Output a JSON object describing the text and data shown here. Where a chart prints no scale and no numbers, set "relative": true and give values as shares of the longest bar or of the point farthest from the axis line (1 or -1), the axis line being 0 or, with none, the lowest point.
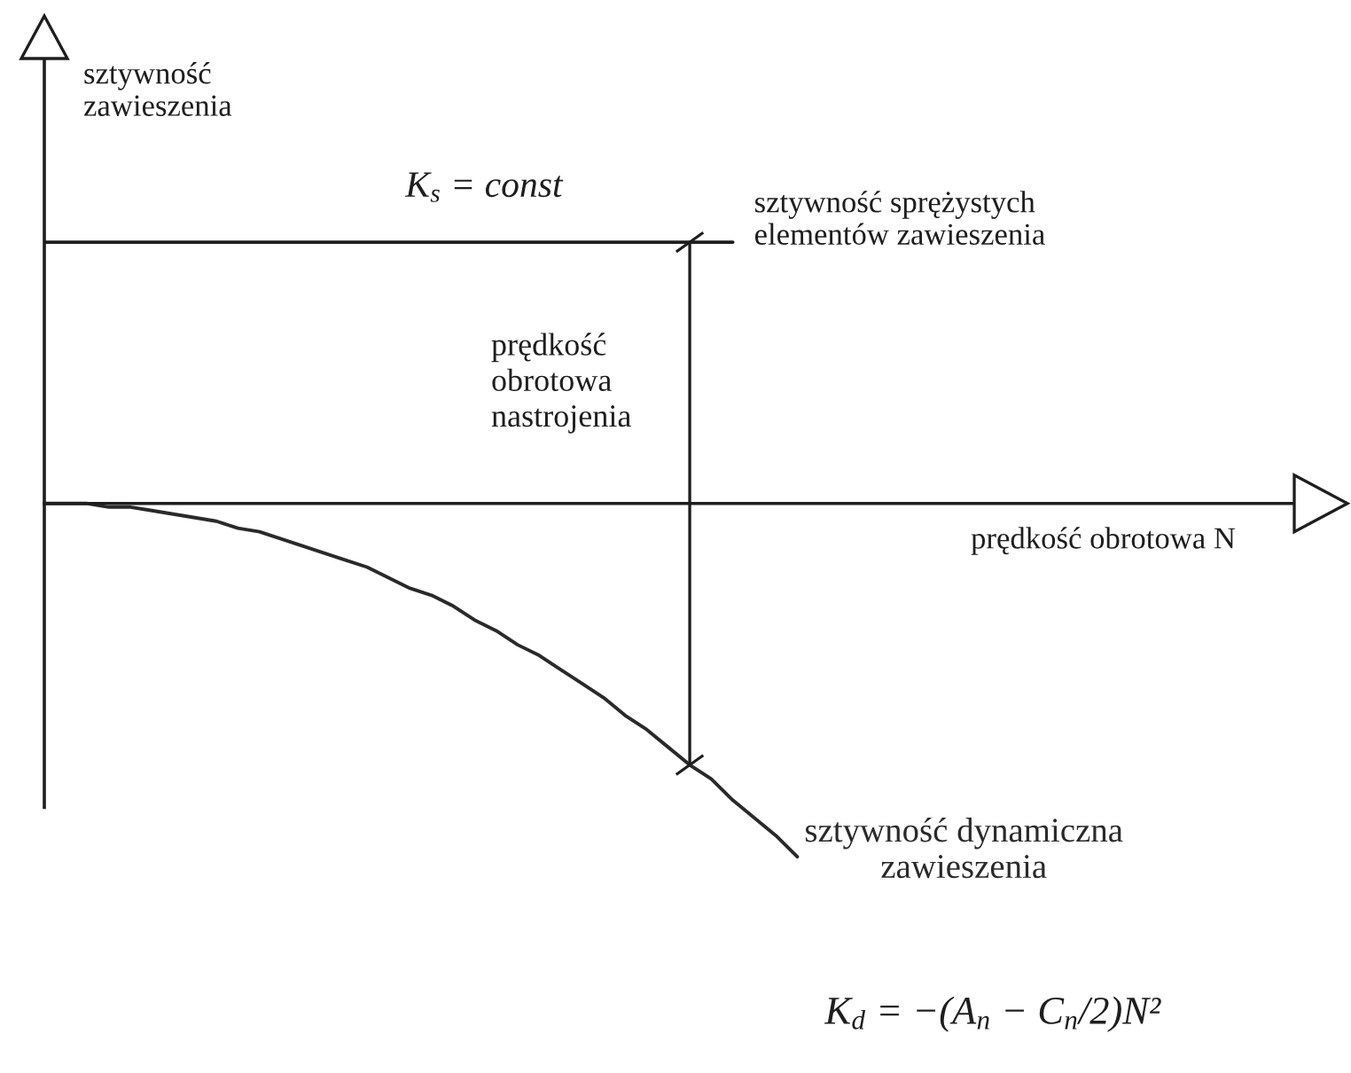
{
  "chart_data": {
    "type": "line",
    "relative": true,
    "tick_labels": false,
    "line_style": "solid",
    "ylabel": "sztywność\nzawieszenia",
    "categories": [
      null,
      null,
      null,
      null,
      null,
      null,
      null,
      null,
      null,
      null,
      null,
      null,
      null,
      null,
      null,
      null,
      null,
      null,
      null,
      null,
      null,
      null,
      null,
      null,
      null,
      null,
      null,
      null,
      null,
      null,
      null,
      null,
      null,
      null,
      null,
      null
    ],
    "series": [
      {
        "name": "sztywność sprężystych\nelementów zawieszenia",
        "color": "#1e1e1e",
        "values": [
          0.74,
          0.74,
          0.74,
          0.74,
          0.74,
          0.74,
          0.74,
          0.74,
          0.74,
          0.74,
          0.74,
          0.74,
          0.74,
          0.74,
          0.74,
          0.74,
          0.74,
          0.74,
          0.74,
          0.74,
          0.74,
          0.74,
          0.74,
          0.74,
          0.74,
          0.74,
          0.74,
          0.74,
          0.74,
          0.74,
          0.74,
          0.74,
          0.74,
          null,
          null,
          null
        ]
      },
      {
        "name": "sztywność dynamiczna\nzawieszenia",
        "color": "#2a2a2a",
        "values": [
          0,
          0,
          0,
          -0.01,
          -0.01,
          -0.02,
          -0.03,
          -0.04,
          -0.05,
          -0.07,
          -0.08,
          -0.1,
          -0.12,
          -0.14,
          -0.16,
          -0.18,
          -0.21,
          -0.24,
          -0.26,
          -0.29,
          -0.33,
          -0.36,
          -0.4,
          -0.43,
          -0.47,
          -0.51,
          -0.55,
          -0.6,
          -0.64,
          -0.69,
          -0.74,
          -0.78,
          -0.84,
          -0.89,
          -0.94,
          -1
        ]
      }
    ],
    "annotations": [
      "K$_{s}$ = const",
      "prędkość\nobrotowa\nnastrojenia",
      "prędkość obrotowa N",
      "K$_{d}$ = −(A$_{n}$ − C$_{n}$/2)N²"
    ]
  }
}
